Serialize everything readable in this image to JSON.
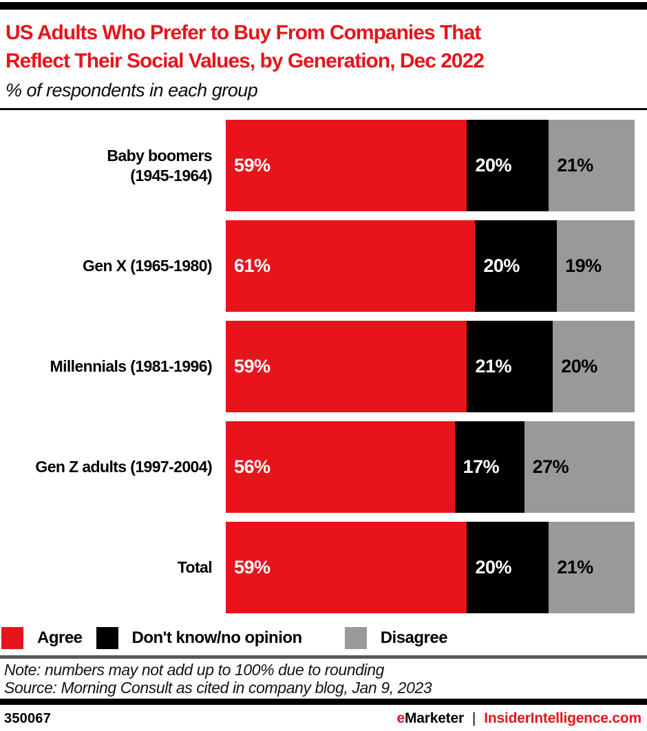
{
  "colors": {
    "accent_red": "#e8131b",
    "bar_black": "#000000",
    "bar_gray": "#9a9999",
    "divider_gray": "#58585a"
  },
  "header": {
    "title": "US Adults Who Prefer to Buy From Companies That Reflect Their Social Values, by Generation, Dec 2022",
    "title_lines": [
      "US Adults Who Prefer to Buy From Companies That",
      "Reflect Their Social Values, by Generation, Dec 2022"
    ],
    "subtitle": "% of respondents in each group"
  },
  "chart_data": {
    "type": "bar",
    "orientation": "horizontal",
    "stacked": true,
    "title": "US Adults Who Prefer to Buy From Companies That Reflect Their Social Values, by Generation, Dec 2022",
    "subtitle": "% of respondents in each group",
    "xlim": [
      0,
      100
    ],
    "value_suffix": "%",
    "grid": false,
    "legend_position": "bottom",
    "categories": [
      "Baby boomers (1945-1964)",
      "Gen X (1965-1980)",
      "Millennials (1981-1996)",
      "Gen Z adults (1997-2004)",
      "Total"
    ],
    "category_lines": [
      [
        "Baby boomers",
        "(1945-1964)"
      ],
      [
        "Gen X (1965-1980)"
      ],
      [
        "Millennials (1981-1996)"
      ],
      [
        "Gen Z adults (1997-2004)"
      ],
      [
        "Total"
      ]
    ],
    "series": [
      {
        "name": "Agree",
        "color": "#e8131b",
        "label_color": "#ffffff",
        "values": [
          59,
          61,
          59,
          56,
          59
        ]
      },
      {
        "name": "Don't know/no opinion",
        "color": "#000000",
        "label_color": "#ffffff",
        "values": [
          20,
          20,
          21,
          17,
          20
        ]
      },
      {
        "name": "Disagree",
        "color": "#9a9999",
        "label_color": "#000000",
        "values": [
          21,
          19,
          20,
          27,
          21
        ]
      }
    ]
  },
  "note": "Note: numbers may not add up to 100% due to rounding",
  "source": "Source: Morning Consult as cited in company blog, Jan 9, 2023",
  "footer": {
    "chart_id": "350067",
    "brand_primary_accent": "e",
    "brand_primary_rest": "Marketer",
    "separator": "|",
    "brand_secondary": "InsiderIntelligence.com"
  }
}
